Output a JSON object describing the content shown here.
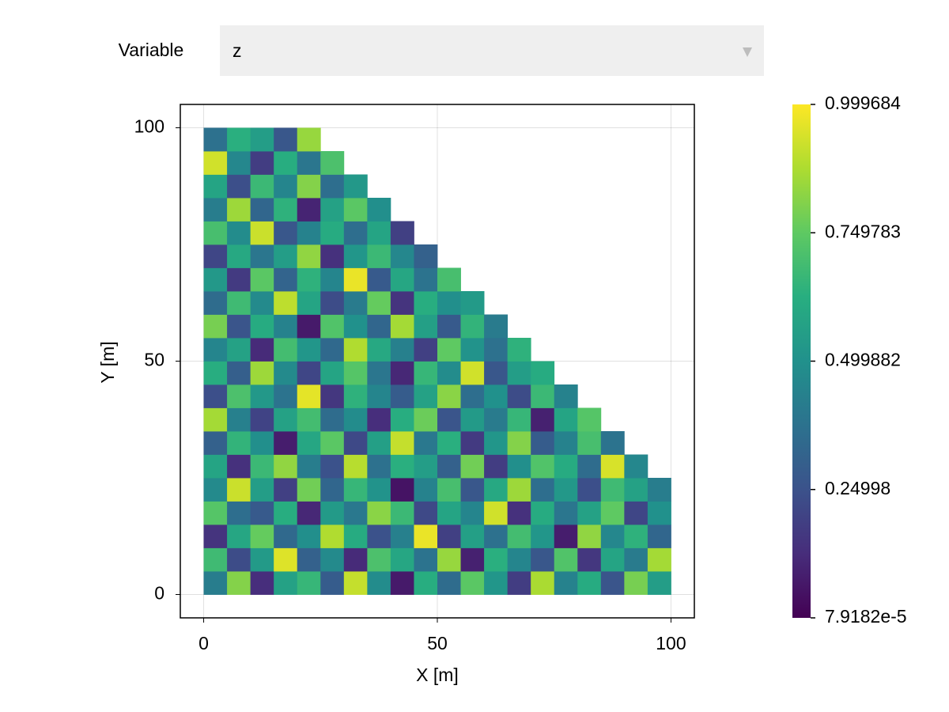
{
  "menu": {
    "label": "Variable",
    "selected": "z"
  },
  "chart_data": {
    "type": "heatmap",
    "xlabel": "X [m]",
    "ylabel": "Y [m]",
    "xlim": [
      -5,
      105
    ],
    "ylim": [
      -5,
      105
    ],
    "xticks": [
      0,
      50,
      100
    ],
    "yticks": [
      0,
      50,
      100
    ],
    "grid": true,
    "colormap": "viridis",
    "zlim": [
      7.9182e-05,
      0.999684
    ],
    "cticks": [
      {
        "value": 7.9182e-05,
        "label": "7.9182e-5"
      },
      0.24998,
      0.499882,
      0.749783,
      0.999684
    ],
    "x": [
      2.5,
      7.5,
      12.5,
      17.5,
      22.5,
      27.5,
      32.5,
      37.5,
      42.5,
      47.5,
      52.5,
      57.5,
      62.5,
      67.5,
      72.5,
      77.5,
      82.5,
      87.5,
      92.5,
      97.5
    ],
    "y": [
      2.5,
      7.5,
      12.5,
      17.5,
      22.5,
      27.5,
      32.5,
      37.5,
      42.5,
      47.5,
      52.5,
      57.5,
      62.5,
      67.5,
      72.5,
      77.5,
      82.5,
      87.5,
      92.5,
      97.5
    ],
    "z": [
      [
        0.42,
        0.81,
        0.13,
        0.57,
        0.66,
        0.29,
        0.91,
        0.48,
        0.07,
        0.62,
        0.35,
        0.74,
        0.52,
        0.18,
        0.87,
        0.44,
        0.61,
        0.26,
        0.79,
        0.55
      ],
      [
        0.68,
        0.23,
        0.54,
        0.95,
        0.31,
        0.47,
        0.12,
        0.71,
        0.59,
        0.38,
        0.84,
        0.09,
        0.63,
        0.45,
        0.27,
        0.72,
        0.16,
        0.58,
        0.41,
        0.86
      ],
      [
        0.15,
        0.59,
        0.76,
        0.34,
        0.49,
        0.88,
        0.61,
        0.25,
        0.43,
        0.97,
        0.19,
        0.56,
        0.37,
        0.69,
        0.52,
        0.08,
        0.83,
        0.46,
        0.64,
        0.33
      ],
      [
        0.73,
        0.36,
        0.28,
        0.62,
        0.11,
        0.54,
        0.4,
        0.82,
        0.67,
        0.22,
        0.58,
        0.45,
        0.93,
        0.14,
        0.61,
        0.39,
        0.57,
        0.75,
        0.21,
        0.5
      ],
      [
        0.47,
        0.92,
        0.55,
        0.19,
        0.78,
        0.33,
        0.66,
        0.51,
        0.05,
        0.44,
        0.7,
        0.27,
        0.6,
        0.85,
        0.36,
        0.53,
        0.24,
        0.68,
        0.57,
        0.42
      ],
      [
        0.58,
        0.14,
        0.67,
        0.83,
        0.42,
        0.25,
        0.89,
        0.37,
        0.63,
        0.55,
        0.31,
        0.78,
        0.18,
        0.49,
        0.72,
        0.61,
        0.35,
        0.94,
        0.46,
        null
      ],
      [
        0.31,
        0.65,
        0.49,
        0.08,
        0.59,
        0.74,
        0.22,
        0.56,
        0.91,
        0.4,
        0.63,
        0.17,
        0.52,
        0.81,
        0.29,
        0.44,
        0.7,
        0.38,
        null,
        null
      ],
      [
        0.86,
        0.43,
        0.2,
        0.57,
        0.69,
        0.35,
        0.48,
        0.13,
        0.62,
        0.77,
        0.26,
        0.54,
        0.41,
        0.66,
        0.09,
        0.58,
        0.73,
        null,
        null,
        null
      ],
      [
        0.24,
        0.71,
        0.53,
        0.38,
        0.96,
        0.16,
        0.64,
        0.45,
        0.29,
        0.57,
        0.82,
        0.36,
        0.5,
        0.23,
        0.67,
        0.44,
        null,
        null,
        null,
        null
      ],
      [
        0.62,
        0.3,
        0.85,
        0.47,
        0.21,
        0.58,
        0.73,
        0.39,
        0.11,
        0.66,
        0.48,
        0.93,
        0.27,
        0.55,
        0.61,
        null,
        null,
        null,
        null,
        null
      ],
      [
        0.45,
        0.57,
        0.12,
        0.69,
        0.52,
        0.34,
        0.88,
        0.6,
        0.43,
        0.19,
        0.75,
        0.51,
        0.37,
        0.64,
        null,
        null,
        null,
        null,
        null,
        null
      ],
      [
        0.79,
        0.26,
        0.61,
        0.44,
        0.07,
        0.72,
        0.5,
        0.33,
        0.86,
        0.56,
        0.28,
        0.65,
        0.41,
        null,
        null,
        null,
        null,
        null,
        null,
        null
      ],
      [
        0.35,
        0.68,
        0.47,
        0.9,
        0.58,
        0.23,
        0.41,
        0.76,
        0.15,
        0.62,
        0.49,
        0.54,
        null,
        null,
        null,
        null,
        null,
        null,
        null,
        null
      ],
      [
        0.53,
        0.17,
        0.74,
        0.32,
        0.64,
        0.45,
        0.97,
        0.28,
        0.59,
        0.38,
        0.7,
        null,
        null,
        null,
        null,
        null,
        null,
        null,
        null,
        null
      ],
      [
        0.21,
        0.6,
        0.39,
        0.55,
        0.83,
        0.14,
        0.52,
        0.67,
        0.46,
        0.31,
        null,
        null,
        null,
        null,
        null,
        null,
        null,
        null,
        null,
        null
      ],
      [
        0.7,
        0.48,
        0.92,
        0.27,
        0.44,
        0.61,
        0.36,
        0.58,
        0.19,
        null,
        null,
        null,
        null,
        null,
        null,
        null,
        null,
        null,
        null,
        null
      ],
      [
        0.42,
        0.85,
        0.33,
        0.64,
        0.1,
        0.57,
        0.74,
        0.49,
        null,
        null,
        null,
        null,
        null,
        null,
        null,
        null,
        null,
        null,
        null,
        null
      ],
      [
        0.58,
        0.24,
        0.67,
        0.45,
        0.81,
        0.36,
        0.53,
        null,
        null,
        null,
        null,
        null,
        null,
        null,
        null,
        null,
        null,
        null,
        null,
        null
      ],
      [
        0.93,
        0.46,
        0.18,
        0.62,
        0.39,
        0.71,
        null,
        null,
        null,
        null,
        null,
        null,
        null,
        null,
        null,
        null,
        null,
        null,
        null,
        null
      ],
      [
        0.37,
        0.63,
        0.55,
        0.27,
        0.84,
        null,
        null,
        null,
        null,
        null,
        null,
        null,
        null,
        null,
        null,
        null,
        null,
        null,
        null,
        null
      ]
    ]
  }
}
